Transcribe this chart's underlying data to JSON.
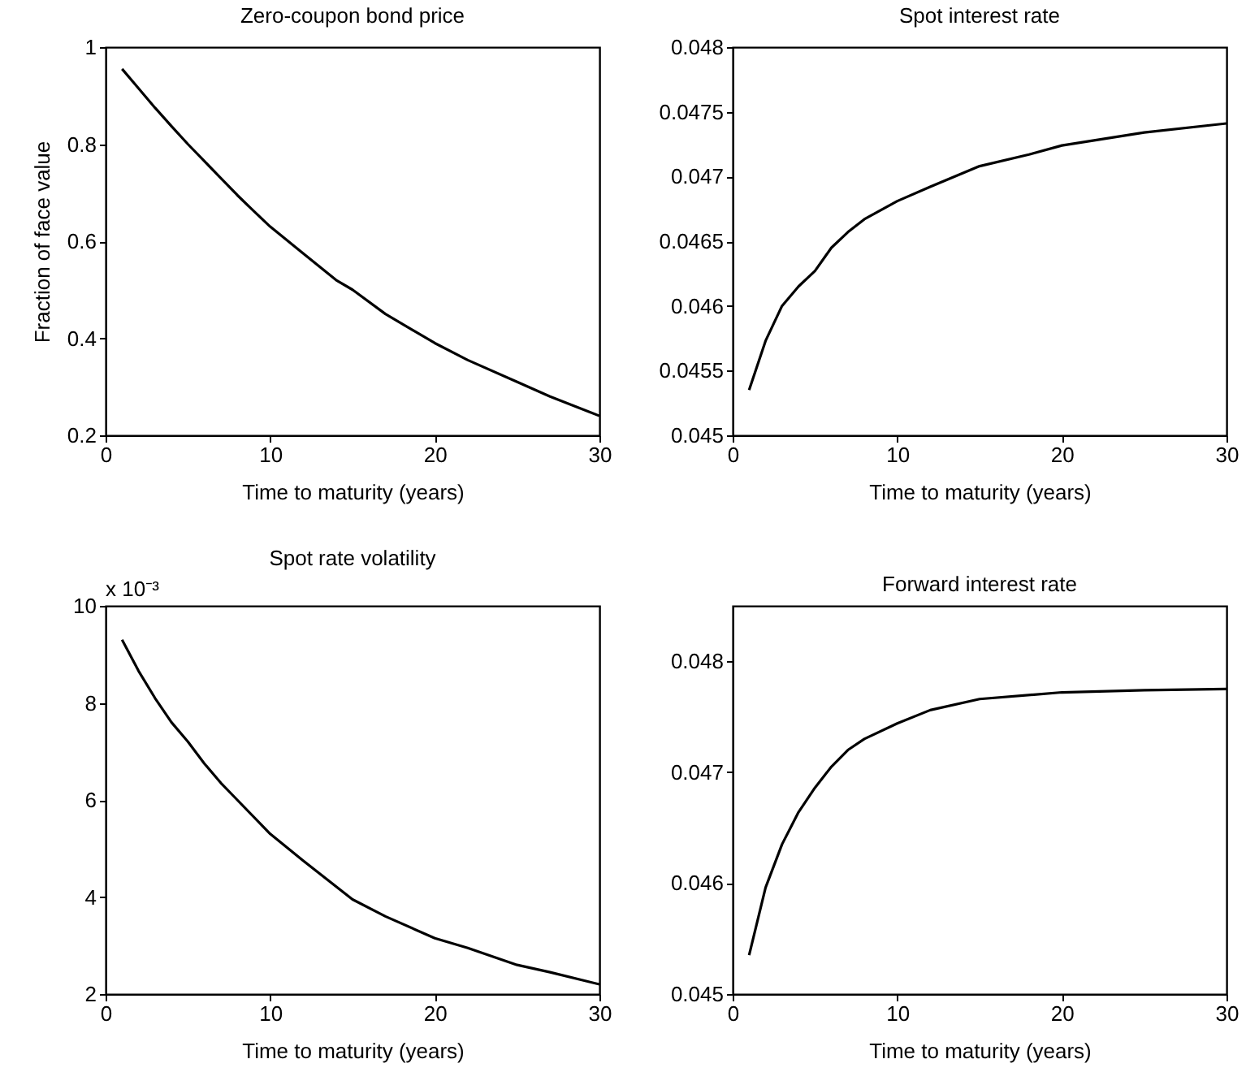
{
  "chart_data": [
    {
      "type": "line",
      "title": "Zero-coupon bond price",
      "xlabel": "Time to maturity (years)",
      "ylabel": "Fraction of face value",
      "x": [
        1,
        2,
        3,
        4,
        5,
        6,
        7,
        8,
        9,
        10,
        12,
        14,
        15,
        17,
        20,
        22,
        25,
        27,
        30
      ],
      "values": [
        0.955,
        0.915,
        0.875,
        0.837,
        0.8,
        0.765,
        0.73,
        0.695,
        0.662,
        0.63,
        0.575,
        0.52,
        0.5,
        0.45,
        0.39,
        0.355,
        0.31,
        0.28,
        0.24
      ],
      "color": "#000000",
      "xlim": [
        0,
        30
      ],
      "xticks": [
        0,
        10,
        20,
        30
      ],
      "ylim": [
        0.2,
        1
      ],
      "yticks": [
        0.2,
        0.4,
        0.6,
        0.8,
        1
      ],
      "grid": false
    },
    {
      "type": "line",
      "title": "Spot interest rate",
      "xlabel": "Time to maturity (years)",
      "x": [
        1,
        2,
        3,
        4,
        5,
        6,
        7,
        8,
        10,
        12,
        15,
        18,
        20,
        25,
        30
      ],
      "values": [
        0.04535,
        0.04573,
        0.046,
        0.04615,
        0.04627,
        0.04645,
        0.04657,
        0.04667,
        0.04681,
        0.04692,
        0.04708,
        0.04717,
        0.04724,
        0.04734,
        0.04741
      ],
      "color": "#000000",
      "xlim": [
        0,
        30
      ],
      "xticks": [
        0,
        10,
        20,
        30
      ],
      "ylim": [
        0.045,
        0.048
      ],
      "yticks": [
        0.045,
        0.0455,
        0.046,
        0.0465,
        0.047,
        0.0475,
        0.048
      ],
      "grid": false
    },
    {
      "type": "line",
      "title": "Spot rate volatility",
      "xlabel": "Time to maturity (years)",
      "annotations": [
        "x 10⁻³"
      ],
      "x": [
        1,
        2,
        3,
        4,
        5,
        6,
        7,
        8,
        10,
        12,
        15,
        17,
        20,
        22,
        25,
        27,
        30
      ],
      "values": [
        9.3,
        8.66,
        8.1,
        7.6,
        7.2,
        6.75,
        6.35,
        6.0,
        5.3,
        4.75,
        3.95,
        3.6,
        3.15,
        2.95,
        2.6,
        2.45,
        2.2
      ],
      "color": "#000000",
      "xlim": [
        0,
        30
      ],
      "xticks": [
        0,
        10,
        20,
        30
      ],
      "ylim": [
        2,
        10
      ],
      "yticks": [
        2,
        4,
        6,
        8,
        10
      ],
      "grid": false
    },
    {
      "type": "line",
      "title": "Forward interest rate",
      "xlabel": "Time to maturity (years)",
      "x": [
        1,
        2,
        3,
        4,
        5,
        6,
        7,
        8,
        10,
        12,
        15,
        20,
        25,
        30
      ],
      "values": [
        0.04535,
        0.04596,
        0.04635,
        0.04664,
        0.04686,
        0.04705,
        0.0472,
        0.0473,
        0.04744,
        0.04756,
        0.04766,
        0.04772,
        0.04774,
        0.04775
      ],
      "color": "#000000",
      "xlim": [
        0,
        30
      ],
      "xticks": [
        0,
        10,
        20,
        30
      ],
      "ylim": [
        0.045,
        0.0485
      ],
      "yticks": [
        0.045,
        0.046,
        0.047,
        0.048
      ],
      "grid": false
    }
  ]
}
